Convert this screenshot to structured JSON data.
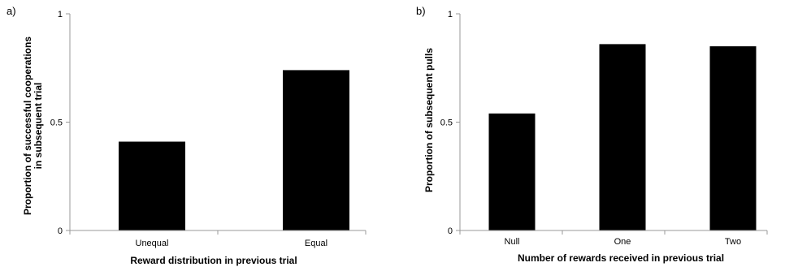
{
  "chart_data": [
    {
      "type": "bar",
      "panel_label": "a)",
      "categories": [
        "Unequal",
        "Equal"
      ],
      "values": [
        0.41,
        0.74
      ],
      "xlabel": "Reward distribution in previous trial",
      "ylabel_lines": [
        "Proportion of successful cooperations",
        "in subsequent trial"
      ],
      "ylim": [
        0,
        1
      ],
      "yticks": [
        0,
        0.5,
        1
      ],
      "ytick_labels": [
        "0",
        "0.5",
        "1"
      ],
      "bar_color": "#000000",
      "grid": false,
      "legend": "none"
    },
    {
      "type": "bar",
      "panel_label": "b)",
      "categories": [
        "Null",
        "One",
        "Two"
      ],
      "values": [
        0.54,
        0.86,
        0.85
      ],
      "xlabel": "Number of rewards received in previous trial",
      "ylabel_lines": [
        "Proportion of subsequent pulls"
      ],
      "ylim": [
        0,
        1
      ],
      "yticks": [
        0,
        0.5,
        1
      ],
      "ytick_labels": [
        "0",
        "0.5",
        "1"
      ],
      "bar_color": "#000000",
      "grid": false,
      "legend": "none"
    }
  ]
}
